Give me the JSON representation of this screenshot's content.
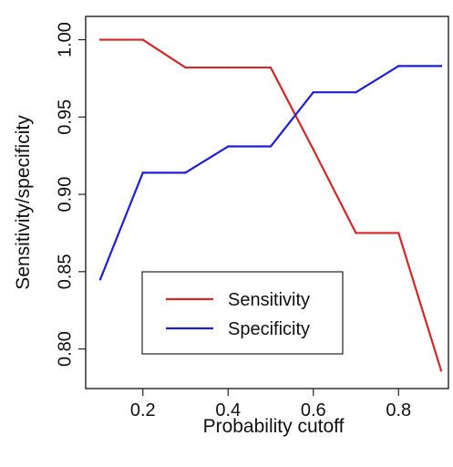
{
  "chart_data": {
    "type": "line",
    "title": "",
    "xlabel": "Probability cutoff",
    "ylabel": "Sensitivity/specificity",
    "x": [
      0.1,
      0.2,
      0.3,
      0.4,
      0.5,
      0.6,
      0.7,
      0.8,
      0.9
    ],
    "x_ticks": [
      0.2,
      0.4,
      0.6,
      0.8
    ],
    "x_tick_labels": [
      "0.2",
      "0.4",
      "0.6",
      "0.8"
    ],
    "y_ticks": [
      0.8,
      0.85,
      0.9,
      0.95,
      1.0
    ],
    "y_tick_labels": [
      "0.80",
      "0.85",
      "0.90",
      "0.95",
      "1.00"
    ],
    "xlim": [
      0.1,
      0.9
    ],
    "ylim": [
      0.785,
      1.0
    ],
    "grid": false,
    "legend_position": "bottom-center",
    "series": [
      {
        "name": "Sensitivity",
        "color": "#d62728",
        "values": [
          1.0,
          1.0,
          0.982,
          0.982,
          0.982,
          0.929,
          0.875,
          0.875,
          0.786
        ]
      },
      {
        "name": "Specificity",
        "color": "#1f1fd6",
        "values": [
          0.845,
          0.914,
          0.914,
          0.931,
          0.931,
          0.966,
          0.966,
          0.983,
          0.983
        ]
      }
    ]
  }
}
